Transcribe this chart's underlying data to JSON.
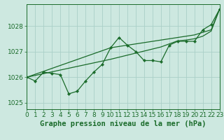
{
  "title": "Graphe pression niveau de la mer (hPa)",
  "background_color": "#cde8e0",
  "grid_color": "#aacfc7",
  "line_color": "#1a6b2a",
  "x_values": [
    0,
    1,
    2,
    3,
    4,
    5,
    6,
    7,
    8,
    9,
    10,
    11,
    12,
    13,
    14,
    15,
    16,
    17,
    18,
    19,
    20,
    21,
    22,
    23
  ],
  "y_main": [
    1026.0,
    1025.85,
    1026.2,
    1026.15,
    1026.1,
    1025.35,
    1025.45,
    1025.85,
    1026.2,
    1026.5,
    1027.15,
    1027.55,
    1027.25,
    1027.0,
    1026.65,
    1026.65,
    1026.6,
    1027.25,
    1027.4,
    1027.4,
    1027.4,
    1027.85,
    1028.05,
    1028.65
  ],
  "y_trend1": [
    1026.0,
    1026.115,
    1026.23,
    1026.345,
    1026.46,
    1026.575,
    1026.69,
    1026.805,
    1026.92,
    1027.035,
    1027.15,
    1027.2,
    1027.25,
    1027.3,
    1027.35,
    1027.4,
    1027.45,
    1027.5,
    1027.55,
    1027.6,
    1027.65,
    1027.75,
    1027.85,
    1028.65
  ],
  "y_trend2": [
    1026.0,
    1026.07,
    1026.14,
    1026.21,
    1026.28,
    1026.35,
    1026.42,
    1026.49,
    1026.56,
    1026.63,
    1026.7,
    1026.78,
    1026.86,
    1026.94,
    1027.02,
    1027.1,
    1027.18,
    1027.3,
    1027.42,
    1027.45,
    1027.5,
    1027.6,
    1027.8,
    1028.65
  ],
  "ylim": [
    1024.75,
    1028.85
  ],
  "xlim": [
    0,
    23
  ],
  "yticks": [
    1025,
    1026,
    1027,
    1028
  ],
  "xticks": [
    0,
    1,
    2,
    3,
    4,
    5,
    6,
    7,
    8,
    9,
    10,
    11,
    12,
    13,
    14,
    15,
    16,
    17,
    18,
    19,
    20,
    21,
    22,
    23
  ],
  "tick_fontsize": 6.5,
  "title_fontsize": 7.5,
  "axis_color": "#1a6b2a",
  "spine_color": "#1a6b2a"
}
